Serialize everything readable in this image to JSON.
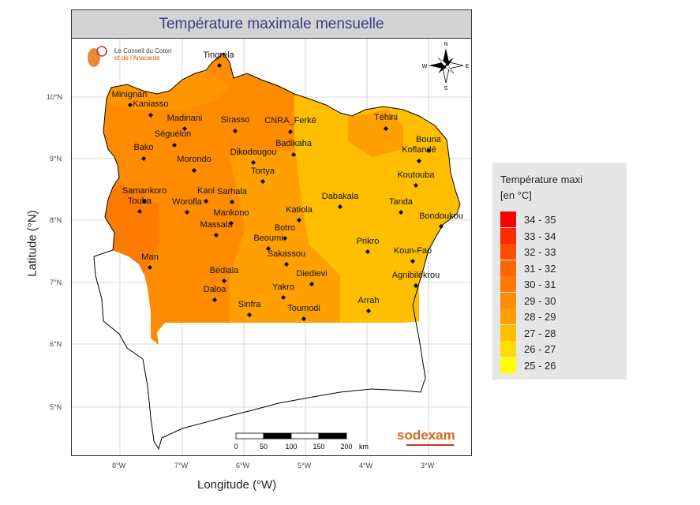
{
  "title": "Température maximale mensuelle",
  "axes": {
    "xlabel": "Longitude (°W)",
    "ylabel": "Latitude (°N)",
    "yticks": [
      "10°N",
      "9°N",
      "8°N",
      "7°N",
      "6°N",
      "5°N"
    ],
    "xticks": [
      "8°W",
      "7°W",
      "6°W",
      "5°W",
      "4°W",
      "3°W"
    ]
  },
  "legend": {
    "title_line1": "Température maxi",
    "title_line2": "[en °C]",
    "items": [
      {
        "label": "34 - 35",
        "color": "#ff0000"
      },
      {
        "label": "33 - 34",
        "color": "#ff2a00"
      },
      {
        "label": "32 - 33",
        "color": "#ff4d00"
      },
      {
        "label": "31 - 32",
        "color": "#ff6600"
      },
      {
        "label": "30 - 31",
        "color": "#ff7a00"
      },
      {
        "label": "29 - 30",
        "color": "#ff8c00"
      },
      {
        "label": "28 - 29",
        "color": "#ffa000"
      },
      {
        "label": "27 - 28",
        "color": "#ffbf00"
      },
      {
        "label": "26 - 27",
        "color": "#ffdd00"
      },
      {
        "label": "25 - 26",
        "color": "#ffff00"
      }
    ]
  },
  "cities": [
    {
      "name": "Tingréla"
    },
    {
      "name": "Minignan"
    },
    {
      "name": "Kaniasso"
    },
    {
      "name": "Madinani"
    },
    {
      "name": "Sirasso"
    },
    {
      "name": "CNRA_Ferké"
    },
    {
      "name": "Téhini"
    },
    {
      "name": "Séguélon"
    },
    {
      "name": "Badikaha"
    },
    {
      "name": "Bouna"
    },
    {
      "name": "Bako"
    },
    {
      "name": "Dikodougou"
    },
    {
      "name": "Koflandé"
    },
    {
      "name": "Morondo"
    },
    {
      "name": "Tortya"
    },
    {
      "name": "Koutouba"
    },
    {
      "name": "Samankoro"
    },
    {
      "name": "Kani"
    },
    {
      "name": "Sarhala"
    },
    {
      "name": "Dabakala"
    },
    {
      "name": "Touba"
    },
    {
      "name": "Worofla"
    },
    {
      "name": "Tanda"
    },
    {
      "name": "Katiola"
    },
    {
      "name": "Mankono"
    },
    {
      "name": "Bondoukou"
    },
    {
      "name": "Massala"
    },
    {
      "name": "Botro"
    },
    {
      "name": "Beoumi"
    },
    {
      "name": "Prikro"
    },
    {
      "name": "Sakassou"
    },
    {
      "name": "Koun-Fao"
    },
    {
      "name": "Man"
    },
    {
      "name": "Bédiala"
    },
    {
      "name": "Diedievi"
    },
    {
      "name": "Agnibilékrou"
    },
    {
      "name": "Daloa"
    },
    {
      "name": "Yakro"
    },
    {
      "name": "Arrah"
    },
    {
      "name": "Sinfra"
    },
    {
      "name": "Toumodi"
    }
  ],
  "scalebar": {
    "ticks": [
      "0",
      "50",
      "100",
      "150",
      "200"
    ],
    "unit": "km"
  },
  "compass": {
    "n": "N",
    "s": "S",
    "e": "E",
    "w": "W"
  },
  "logo_left": {
    "line1": "Le Conseil du Coton",
    "line2": "et de l'Anacarde"
  },
  "logo_right": {
    "text": "sodexam"
  }
}
